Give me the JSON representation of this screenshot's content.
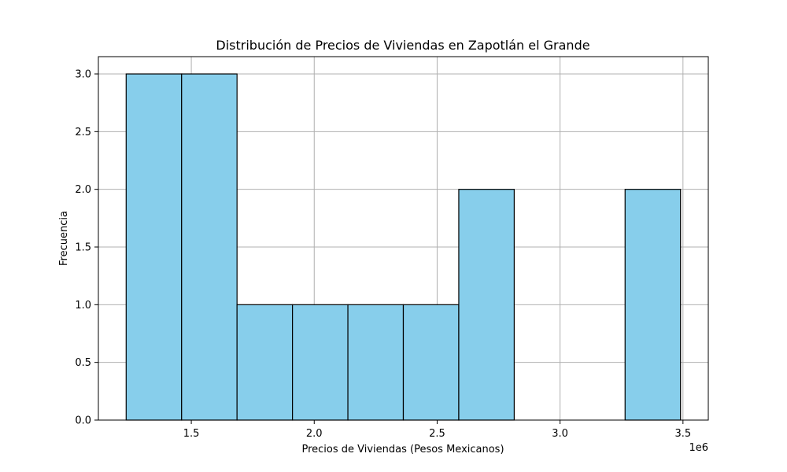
{
  "chart_data": {
    "type": "bar",
    "title": "Distribución de Precios de Viviendas en Zapotlán el Grande",
    "xlabel": "Precios de Viviendas (Pesos Mexicanos)",
    "ylabel": "Frecuencia",
    "x_offset_label": "1e6",
    "bin_edges": [
      1.235,
      1.4605,
      1.686,
      1.9115,
      2.137,
      2.3625,
      2.588,
      2.8135,
      3.039,
      3.2645,
      3.49
    ],
    "values": [
      3,
      3,
      1,
      1,
      1,
      1,
      2,
      0,
      0,
      2
    ],
    "xlim": [
      1.122,
      3.603
    ],
    "ylim": [
      0,
      3.15
    ],
    "xticks": [
      1.5,
      2.0,
      2.5,
      3.0,
      3.5
    ],
    "xtick_labels": [
      "1.5",
      "2.0",
      "2.5",
      "3.0",
      "3.5"
    ],
    "yticks": [
      0,
      0.5,
      1,
      1.5,
      2,
      2.5,
      3
    ],
    "ytick_labels": [
      "0.0",
      "0.5",
      "1.0",
      "1.5",
      "2.0",
      "2.5",
      "3.0"
    ],
    "grid": true,
    "bar_color": "#87ceeb",
    "edge_color": "#000000"
  }
}
